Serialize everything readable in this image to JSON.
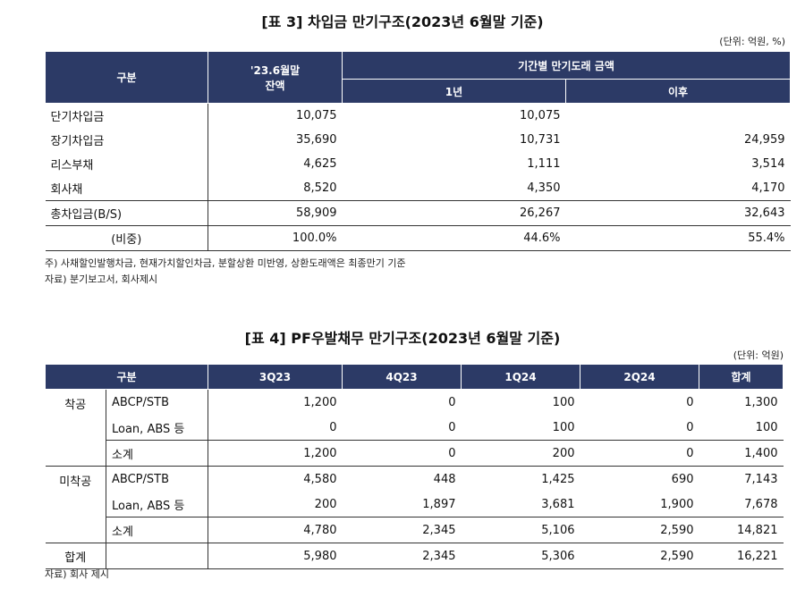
{
  "table3": {
    "title": "[표 3] 차입금 만기구조(2023년 6월말 기준)",
    "unit": "(단위: 억원, %)",
    "headers": {
      "category": "구분",
      "balance_line1": "'23.6월말",
      "balance_line2": "잔액",
      "maturity_group": "기간별 만기도래 금액",
      "within_1y": "1년",
      "after": "이후"
    },
    "rows": [
      {
        "label": "단기차입금",
        "balance": "10,075",
        "y1": "10,075",
        "after": ""
      },
      {
        "label": "장기차입금",
        "balance": "35,690",
        "y1": "10,731",
        "after": "24,959"
      },
      {
        "label": "리스부채",
        "balance": "4,625",
        "y1": "1,111",
        "after": "3,514"
      },
      {
        "label": "회사채",
        "balance": "8,520",
        "y1": "4,350",
        "after": "4,170"
      }
    ],
    "total": {
      "label": "총차입금(B/S)",
      "balance": "58,909",
      "y1": "26,267",
      "after": "32,643"
    },
    "weight": {
      "label": "(비중)",
      "balance": "100.0%",
      "y1": "44.6%",
      "after": "55.4%"
    },
    "notes": [
      "주) 사채할인발행차금, 현재가치할인차금, 분할상환 미반영, 상환도래액은 최종만기 기준",
      "자료) 분기보고서, 회사제시"
    ]
  },
  "table4": {
    "title": "[표 4] PF우발채무 만기구조(2023년 6월말 기준)",
    "unit": "(단위: 억원)",
    "headers": [
      "구분",
      "3Q23",
      "4Q23",
      "1Q24",
      "2Q24",
      "합계"
    ],
    "groups": [
      {
        "name": "착공",
        "rows": [
          {
            "label": "ABCP/STB",
            "values": [
              "1,200",
              "0",
              "100",
              "0",
              "1,300"
            ]
          },
          {
            "label": "Loan, ABS 등",
            "values": [
              "0",
              "0",
              "100",
              "0",
              "100"
            ]
          },
          {
            "label": "소계",
            "values": [
              "1,200",
              "0",
              "200",
              "0",
              "1,400"
            ]
          }
        ]
      },
      {
        "name": "미착공",
        "rows": [
          {
            "label": "ABCP/STB",
            "values": [
              "4,580",
              "448",
              "1,425",
              "690",
              "7,143"
            ]
          },
          {
            "label": "Loan, ABS 등",
            "values": [
              "200",
              "1,897",
              "3,681",
              "1,900",
              "7,678"
            ]
          },
          {
            "label": "소계",
            "values": [
              "4,780",
              "2,345",
              "5,106",
              "2,590",
              "14,821"
            ]
          }
        ]
      }
    ],
    "grand_total": {
      "label": "합계",
      "values": [
        "5,980",
        "2,345",
        "5,306",
        "2,590",
        "16,221"
      ]
    },
    "source": "자료) 회사 제시"
  }
}
